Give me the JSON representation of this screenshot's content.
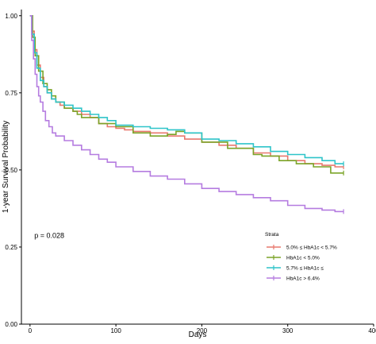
{
  "chart_data": {
    "type": "line",
    "step": true,
    "xlabel": "Days",
    "ylabel": "1-year Survival Probability",
    "xlim": [
      -10,
      400
    ],
    "ylim": [
      0,
      1.02
    ],
    "xticks": [
      0,
      100,
      200,
      300,
      400
    ],
    "yticks": [
      0.0,
      0.25,
      0.5,
      0.75,
      1.0
    ],
    "xtick_labels": [
      "0",
      "100",
      "200",
      "300",
      "400"
    ],
    "ytick_labels": [
      "0.00",
      "0.25",
      "0.50",
      "0.75",
      "1.00"
    ],
    "grid": false,
    "legend_position": "bottom-right",
    "annotation": "p = 0.028",
    "legend_title": "Strata",
    "series": [
      {
        "name": "5.0% ≤ HbA1c < 5.7%",
        "color": "#e8786e",
        "x": [
          0,
          2,
          5,
          8,
          12,
          16,
          20,
          25,
          30,
          35,
          40,
          50,
          60,
          70,
          80,
          90,
          100,
          110,
          120,
          140,
          160,
          180,
          200,
          220,
          240,
          260,
          280,
          300,
          320,
          340,
          355,
          365
        ],
        "y": [
          1.0,
          0.95,
          0.89,
          0.84,
          0.8,
          0.77,
          0.75,
          0.73,
          0.72,
          0.71,
          0.7,
          0.69,
          0.68,
          0.67,
          0.65,
          0.64,
          0.635,
          0.63,
          0.625,
          0.62,
          0.61,
          0.6,
          0.59,
          0.58,
          0.57,
          0.555,
          0.545,
          0.53,
          0.52,
          0.515,
          0.51,
          0.51
        ]
      },
      {
        "name": "HbA1c < 5.0%",
        "color": "#7ba428",
        "x": [
          0,
          3,
          6,
          10,
          15,
          20,
          25,
          30,
          40,
          50,
          55,
          60,
          80,
          100,
          120,
          140,
          160,
          170,
          180,
          200,
          230,
          260,
          270,
          290,
          310,
          330,
          350,
          365
        ],
        "y": [
          1.0,
          0.93,
          0.87,
          0.82,
          0.78,
          0.76,
          0.74,
          0.72,
          0.7,
          0.69,
          0.68,
          0.67,
          0.65,
          0.64,
          0.62,
          0.61,
          0.615,
          0.625,
          0.62,
          0.59,
          0.57,
          0.55,
          0.545,
          0.53,
          0.52,
          0.51,
          0.49,
          0.49
        ]
      },
      {
        "name": "5.7% ≤ HbA1c ≤",
        "color": "#2ec4c9",
        "x": [
          0,
          2,
          5,
          8,
          12,
          16,
          20,
          25,
          30,
          40,
          50,
          60,
          70,
          80,
          90,
          100,
          120,
          140,
          160,
          180,
          200,
          220,
          240,
          260,
          280,
          300,
          320,
          340,
          355,
          365
        ],
        "y": [
          1.0,
          0.94,
          0.88,
          0.83,
          0.79,
          0.77,
          0.75,
          0.73,
          0.72,
          0.71,
          0.7,
          0.69,
          0.68,
          0.67,
          0.66,
          0.645,
          0.64,
          0.635,
          0.63,
          0.62,
          0.6,
          0.595,
          0.585,
          0.575,
          0.56,
          0.55,
          0.54,
          0.53,
          0.52,
          0.52
        ]
      },
      {
        "name": "HbA1c > 6.4%",
        "color": "#b57ce0",
        "x": [
          0,
          2,
          4,
          6,
          8,
          10,
          12,
          15,
          18,
          22,
          26,
          30,
          40,
          50,
          60,
          70,
          80,
          90,
          100,
          120,
          140,
          160,
          180,
          200,
          220,
          240,
          260,
          280,
          300,
          320,
          340,
          355,
          365
        ],
        "y": [
          1.0,
          0.92,
          0.86,
          0.81,
          0.77,
          0.74,
          0.72,
          0.69,
          0.66,
          0.64,
          0.62,
          0.61,
          0.595,
          0.58,
          0.565,
          0.55,
          0.535,
          0.525,
          0.51,
          0.495,
          0.48,
          0.47,
          0.455,
          0.44,
          0.43,
          0.42,
          0.41,
          0.4,
          0.385,
          0.375,
          0.37,
          0.365,
          0.365
        ]
      }
    ]
  }
}
